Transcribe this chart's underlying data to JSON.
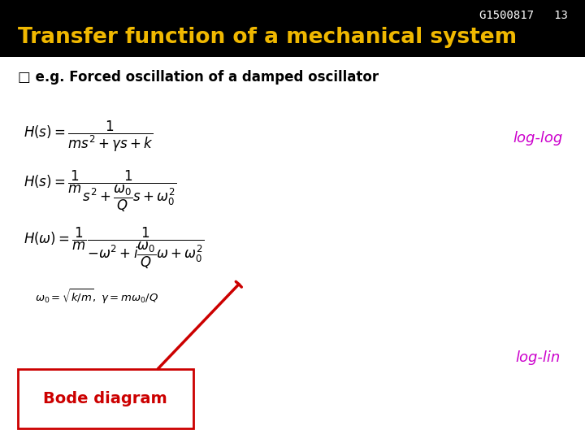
{
  "background_color": "#ffffff",
  "header_color": "#000000",
  "header_text_color": "#f0b800",
  "header_label": "G1500817   13",
  "header_label_color": "#ffffff",
  "title": "Transfer function of a mechanical system",
  "subtitle": "□ e.g. Forced oscillation of a damped oscillator",
  "subtitle_color": "#000000",
  "eq1": "$H(s) = \\dfrac{1}{ms^2 + \\gamma s + k}$",
  "eq2": "$H(s) = \\dfrac{1}{m} \\dfrac{1}{s^2 + \\dfrac{\\omega_0}{Q}s + \\omega_0^2}$",
  "eq3": "$H(\\omega) = \\dfrac{1}{m} \\dfrac{1}{-\\omega^2 + i\\dfrac{\\omega_0}{Q}\\omega + \\omega_0^2}$",
  "eq4": "$\\omega_0 = \\sqrt{k/m}, \\; \\gamma = m\\omega_0/Q$",
  "log_log_label": "log-log",
  "log_lin_label": "log-lin",
  "annotation_color": "#cc0000",
  "bode_label": "Bode diagram",
  "bode_label_color": "#cc0000",
  "bode_box_color": "#cc0000",
  "loglog_color": "#cc00cc",
  "loglin_color": "#cc00cc",
  "fig_width": 7.2,
  "fig_height": 5.4,
  "dpi": 100
}
